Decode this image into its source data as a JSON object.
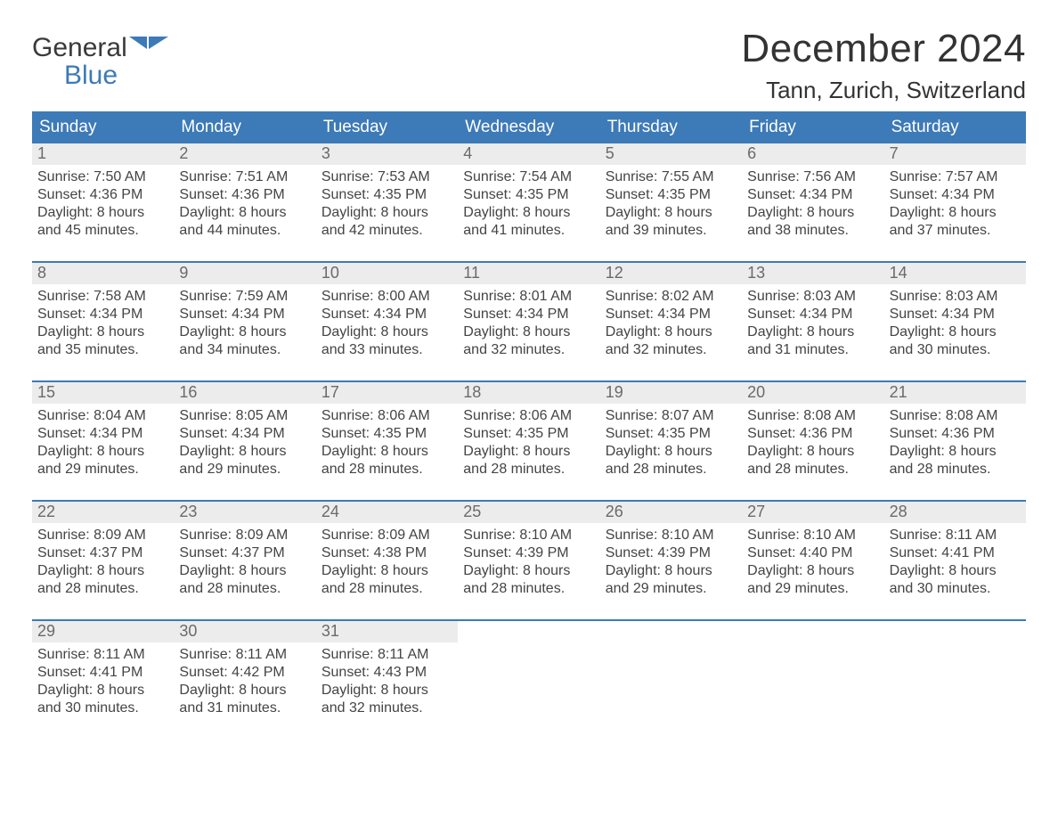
{
  "colors": {
    "accent": "#3d7ab8",
    "header_bg": "#3d7ab8",
    "daynum_bg": "#ececec",
    "text": "#3a3a3a",
    "white": "#ffffff"
  },
  "logo": {
    "line1": "General",
    "line2": "Blue"
  },
  "title": "December 2024",
  "location": "Tann, Zurich, Switzerland",
  "weekdays": [
    "Sunday",
    "Monday",
    "Tuesday",
    "Wednesday",
    "Thursday",
    "Friday",
    "Saturday"
  ],
  "labels": {
    "sunrise": "Sunrise:",
    "sunset": "Sunset:",
    "daylight_prefix": "Daylight:",
    "hours_word": "hours",
    "and_word": "and",
    "minutes_word": "minutes."
  },
  "weeks": [
    [
      {
        "n": "1",
        "sr": "7:50 AM",
        "ss": "4:36 PM",
        "dh": "8",
        "dm": "45"
      },
      {
        "n": "2",
        "sr": "7:51 AM",
        "ss": "4:36 PM",
        "dh": "8",
        "dm": "44"
      },
      {
        "n": "3",
        "sr": "7:53 AM",
        "ss": "4:35 PM",
        "dh": "8",
        "dm": "42"
      },
      {
        "n": "4",
        "sr": "7:54 AM",
        "ss": "4:35 PM",
        "dh": "8",
        "dm": "41"
      },
      {
        "n": "5",
        "sr": "7:55 AM",
        "ss": "4:35 PM",
        "dh": "8",
        "dm": "39"
      },
      {
        "n": "6",
        "sr": "7:56 AM",
        "ss": "4:34 PM",
        "dh": "8",
        "dm": "38"
      },
      {
        "n": "7",
        "sr": "7:57 AM",
        "ss": "4:34 PM",
        "dh": "8",
        "dm": "37"
      }
    ],
    [
      {
        "n": "8",
        "sr": "7:58 AM",
        "ss": "4:34 PM",
        "dh": "8",
        "dm": "35"
      },
      {
        "n": "9",
        "sr": "7:59 AM",
        "ss": "4:34 PM",
        "dh": "8",
        "dm": "34"
      },
      {
        "n": "10",
        "sr": "8:00 AM",
        "ss": "4:34 PM",
        "dh": "8",
        "dm": "33"
      },
      {
        "n": "11",
        "sr": "8:01 AM",
        "ss": "4:34 PM",
        "dh": "8",
        "dm": "32"
      },
      {
        "n": "12",
        "sr": "8:02 AM",
        "ss": "4:34 PM",
        "dh": "8",
        "dm": "32"
      },
      {
        "n": "13",
        "sr": "8:03 AM",
        "ss": "4:34 PM",
        "dh": "8",
        "dm": "31"
      },
      {
        "n": "14",
        "sr": "8:03 AM",
        "ss": "4:34 PM",
        "dh": "8",
        "dm": "30"
      }
    ],
    [
      {
        "n": "15",
        "sr": "8:04 AM",
        "ss": "4:34 PM",
        "dh": "8",
        "dm": "29"
      },
      {
        "n": "16",
        "sr": "8:05 AM",
        "ss": "4:34 PM",
        "dh": "8",
        "dm": "29"
      },
      {
        "n": "17",
        "sr": "8:06 AM",
        "ss": "4:35 PM",
        "dh": "8",
        "dm": "28"
      },
      {
        "n": "18",
        "sr": "8:06 AM",
        "ss": "4:35 PM",
        "dh": "8",
        "dm": "28"
      },
      {
        "n": "19",
        "sr": "8:07 AM",
        "ss": "4:35 PM",
        "dh": "8",
        "dm": "28"
      },
      {
        "n": "20",
        "sr": "8:08 AM",
        "ss": "4:36 PM",
        "dh": "8",
        "dm": "28"
      },
      {
        "n": "21",
        "sr": "8:08 AM",
        "ss": "4:36 PM",
        "dh": "8",
        "dm": "28"
      }
    ],
    [
      {
        "n": "22",
        "sr": "8:09 AM",
        "ss": "4:37 PM",
        "dh": "8",
        "dm": "28"
      },
      {
        "n": "23",
        "sr": "8:09 AM",
        "ss": "4:37 PM",
        "dh": "8",
        "dm": "28"
      },
      {
        "n": "24",
        "sr": "8:09 AM",
        "ss": "4:38 PM",
        "dh": "8",
        "dm": "28"
      },
      {
        "n": "25",
        "sr": "8:10 AM",
        "ss": "4:39 PM",
        "dh": "8",
        "dm": "28"
      },
      {
        "n": "26",
        "sr": "8:10 AM",
        "ss": "4:39 PM",
        "dh": "8",
        "dm": "29"
      },
      {
        "n": "27",
        "sr": "8:10 AM",
        "ss": "4:40 PM",
        "dh": "8",
        "dm": "29"
      },
      {
        "n": "28",
        "sr": "8:11 AM",
        "ss": "4:41 PM",
        "dh": "8",
        "dm": "30"
      }
    ],
    [
      {
        "n": "29",
        "sr": "8:11 AM",
        "ss": "4:41 PM",
        "dh": "8",
        "dm": "30"
      },
      {
        "n": "30",
        "sr": "8:11 AM",
        "ss": "4:42 PM",
        "dh": "8",
        "dm": "31"
      },
      {
        "n": "31",
        "sr": "8:11 AM",
        "ss": "4:43 PM",
        "dh": "8",
        "dm": "32"
      },
      null,
      null,
      null,
      null
    ]
  ]
}
